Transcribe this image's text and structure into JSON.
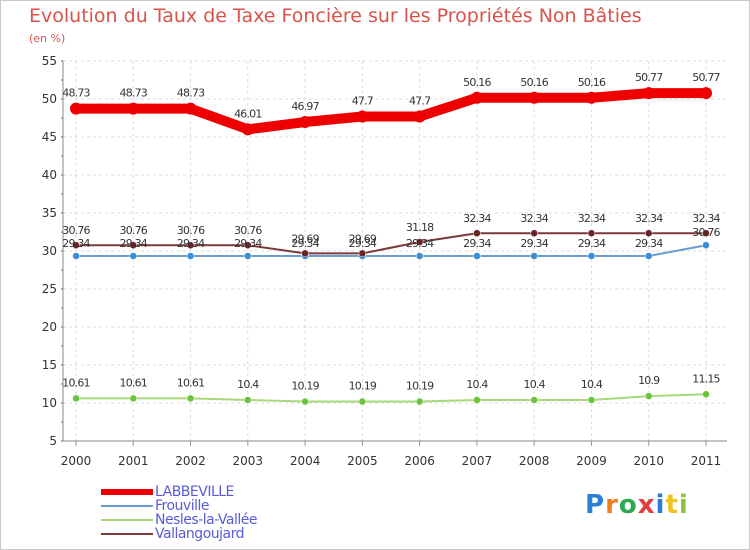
{
  "title": "Evolution du Taux de Taxe Foncière sur les Propriétés Non Bâties",
  "unit": "(en %)",
  "logo": {
    "text": "Proxiti",
    "letter_colors": [
      "#2a7fd4",
      "#f07e1e",
      "#2fa84f",
      "#e23c3c",
      "#2a7fd4",
      "#f0c21e",
      "#8bc34a"
    ]
  },
  "chart_data": {
    "type": "line",
    "title": "Evolution du Taux de Taxe Foncière sur les Propriétés Non Bâties",
    "ylabel": "(en %)",
    "xlabel": "",
    "x": [
      "2000",
      "2001",
      "2002",
      "2003",
      "2004",
      "2005",
      "2006",
      "2007",
      "2008",
      "2009",
      "2010",
      "2011"
    ],
    "ylim": [
      5,
      55
    ],
    "yticks": [
      5,
      10,
      15,
      20,
      25,
      30,
      35,
      40,
      45,
      50,
      55
    ],
    "grid": true,
    "legend_position": "bottom-left",
    "series": [
      {
        "name": "LABBEVILLE",
        "color": "#ee0000",
        "emphasis": true,
        "values": [
          48.73,
          48.73,
          48.73,
          46.01,
          46.97,
          47.7,
          47.7,
          50.16,
          50.16,
          50.16,
          50.77,
          50.77
        ],
        "labels": [
          "48.73",
          "48.73",
          "48.73",
          "46.01",
          "46.97",
          "47.7",
          "47.7",
          "50.16",
          "50.16",
          "50.16",
          "50.77",
          "50.77"
        ]
      },
      {
        "name": "Frouville",
        "color": "#6a9ccf",
        "point_color": "#3a8fd8",
        "values": [
          29.34,
          29.34,
          29.34,
          29.34,
          29.34,
          29.34,
          29.34,
          29.34,
          29.34,
          29.34,
          29.34,
          30.76
        ],
        "labels": [
          "29.34",
          "29.34",
          "29.34",
          "29.34",
          "29.34",
          "29.34",
          "29.34",
          "29.34",
          "29.34",
          "29.34",
          "29.34",
          "30.76"
        ]
      },
      {
        "name": "Nesles-la-Vallée",
        "color": "#a8d87a",
        "point_color": "#6cc43c",
        "values": [
          10.61,
          10.61,
          10.61,
          10.4,
          10.19,
          10.19,
          10.19,
          10.4,
          10.4,
          10.4,
          10.9,
          11.15
        ],
        "labels": [
          "10.61",
          "10.61",
          "10.61",
          "10.4",
          "10.19",
          "10.19",
          "10.19",
          "10.4",
          "10.4",
          "10.4",
          "10.9",
          "11.15"
        ]
      },
      {
        "name": "Vallangoujard",
        "color": "#7a3a3a",
        "point_color": "#6a2424",
        "values": [
          30.76,
          30.76,
          30.76,
          30.76,
          29.69,
          29.69,
          31.18,
          32.34,
          32.34,
          32.34,
          32.34,
          32.34
        ],
        "labels": [
          "30.76",
          "30.76",
          "30.76",
          "30.76",
          "29.69",
          "29.69",
          "31.18",
          "32.34",
          "32.34",
          "32.34",
          "32.34",
          "32.34"
        ]
      }
    ]
  }
}
